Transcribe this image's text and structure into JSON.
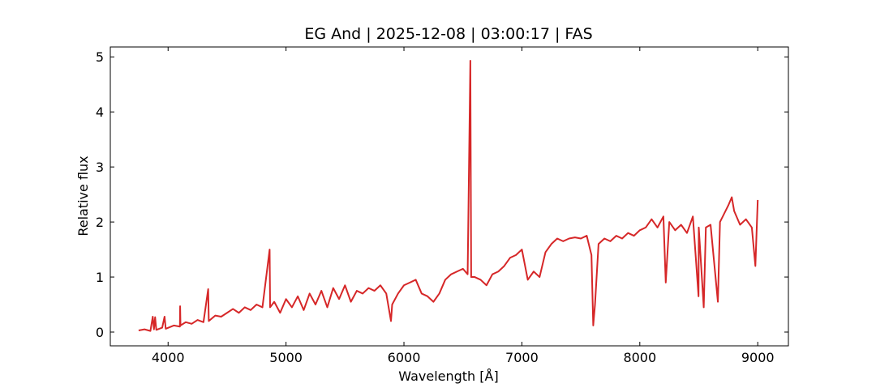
{
  "chart_data": {
    "type": "line",
    "title": "EG And | 2025-12-08 | 03:00:17 | FAS",
    "xlabel": "Wavelength [Å]",
    "ylabel": "Relative flux",
    "xlim": [
      3510,
      9260
    ],
    "ylim": [
      -0.25,
      5.18
    ],
    "xticks": [
      4000,
      5000,
      6000,
      7000,
      8000,
      9000
    ],
    "yticks": [
      0,
      1,
      2,
      3,
      4,
      5
    ],
    "grid": false,
    "x": [
      3750,
      3800,
      3850,
      3870,
      3880,
      3890,
      3900,
      3950,
      3970,
      3980,
      4050,
      4100,
      4102,
      4105,
      4150,
      4200,
      4250,
      4300,
      4340,
      4345,
      4400,
      4450,
      4500,
      4550,
      4600,
      4650,
      4700,
      4750,
      4800,
      4861,
      4865,
      4900,
      4950,
      5000,
      5050,
      5100,
      5150,
      5200,
      5250,
      5300,
      5350,
      5400,
      5450,
      5500,
      5550,
      5600,
      5650,
      5700,
      5750,
      5800,
      5850,
      5890,
      5900,
      5950,
      6000,
      6050,
      6100,
      6150,
      6200,
      6250,
      6300,
      6350,
      6400,
      6450,
      6500,
      6540,
      6563,
      6570,
      6600,
      6650,
      6700,
      6750,
      6800,
      6850,
      6900,
      6950,
      7000,
      7050,
      7100,
      7150,
      7200,
      7250,
      7300,
      7350,
      7400,
      7450,
      7500,
      7550,
      7590,
      7605,
      7620,
      7650,
      7700,
      7750,
      7800,
      7850,
      7900,
      7950,
      8000,
      8050,
      8100,
      8150,
      8200,
      8220,
      8250,
      8300,
      8350,
      8400,
      8450,
      8498,
      8500,
      8542,
      8560,
      8600,
      8662,
      8680,
      8750,
      8780,
      8800,
      8850,
      8900,
      8950,
      8980,
      9000
    ],
    "series": [
      {
        "name": "flux",
        "color": "#d62728",
        "values": [
          0.03,
          0.05,
          0.02,
          0.28,
          0.05,
          0.27,
          0.04,
          0.08,
          0.28,
          0.06,
          0.12,
          0.1,
          0.47,
          0.12,
          0.18,
          0.15,
          0.22,
          0.18,
          0.78,
          0.2,
          0.3,
          0.28,
          0.35,
          0.42,
          0.35,
          0.45,
          0.4,
          0.5,
          0.45,
          1.5,
          0.45,
          0.55,
          0.35,
          0.6,
          0.45,
          0.65,
          0.4,
          0.7,
          0.5,
          0.75,
          0.45,
          0.8,
          0.6,
          0.85,
          0.55,
          0.75,
          0.7,
          0.8,
          0.75,
          0.85,
          0.7,
          0.2,
          0.5,
          0.7,
          0.85,
          0.9,
          0.95,
          0.7,
          0.65,
          0.55,
          0.7,
          0.95,
          1.05,
          1.1,
          1.15,
          1.05,
          4.93,
          1.0,
          1.0,
          0.95,
          0.85,
          1.05,
          1.1,
          1.2,
          1.35,
          1.4,
          1.5,
          0.95,
          1.1,
          1.0,
          1.45,
          1.6,
          1.7,
          1.65,
          1.7,
          1.72,
          1.7,
          1.75,
          1.4,
          0.12,
          0.5,
          1.6,
          1.7,
          1.65,
          1.75,
          1.7,
          1.8,
          1.75,
          1.85,
          1.9,
          2.05,
          1.9,
          2.1,
          0.9,
          2.0,
          1.85,
          1.95,
          1.8,
          2.1,
          0.65,
          1.9,
          0.45,
          1.9,
          1.95,
          0.55,
          2.0,
          2.3,
          2.45,
          2.2,
          1.95,
          2.05,
          1.9,
          1.2,
          2.4
        ]
      }
    ]
  }
}
